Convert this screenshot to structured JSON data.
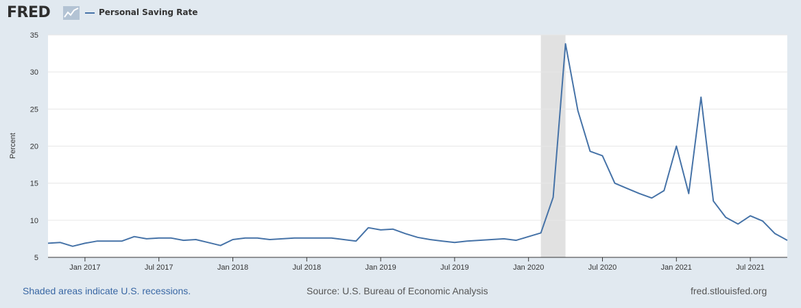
{
  "header": {
    "logo_text": "FRED",
    "logo_icon": "fred-chart-logo-icon",
    "legend_label": "Personal Saving Rate",
    "series_color": "#4572a7"
  },
  "footer": {
    "recession_note": "Shaded areas indicate U.S. recessions.",
    "source": "Source: U.S. Bureau of Economic Analysis",
    "site": "fred.stlouisfed.org"
  },
  "chart_data": {
    "type": "line",
    "title": "",
    "xlabel": "",
    "ylabel": "Percent",
    "ylim": [
      5,
      35
    ],
    "yticks": [
      5,
      10,
      15,
      20,
      25,
      30,
      35
    ],
    "xticks": [
      {
        "label": "Jan 2017",
        "date": "2017-01"
      },
      {
        "label": "Jul 2017",
        "date": "2017-07"
      },
      {
        "label": "Jan 2018",
        "date": "2018-01"
      },
      {
        "label": "Jul 2018",
        "date": "2018-07"
      },
      {
        "label": "Jan 2019",
        "date": "2019-01"
      },
      {
        "label": "Jul 2019",
        "date": "2019-07"
      },
      {
        "label": "Jan 2020",
        "date": "2020-01"
      },
      {
        "label": "Jul 2020",
        "date": "2020-07"
      },
      {
        "label": "Jan 2021",
        "date": "2021-01"
      },
      {
        "label": "Jul 2021",
        "date": "2021-07"
      }
    ],
    "grid": true,
    "recession_shading": {
      "start": "2020-02",
      "end": "2020-04"
    },
    "series": [
      {
        "name": "Personal Saving Rate",
        "color": "#4572a7",
        "x": [
          "2016-10",
          "2016-11",
          "2016-12",
          "2017-01",
          "2017-02",
          "2017-03",
          "2017-04",
          "2017-05",
          "2017-06",
          "2017-07",
          "2017-08",
          "2017-09",
          "2017-10",
          "2017-11",
          "2017-12",
          "2018-01",
          "2018-02",
          "2018-03",
          "2018-04",
          "2018-05",
          "2018-06",
          "2018-07",
          "2018-08",
          "2018-09",
          "2018-10",
          "2018-11",
          "2018-12",
          "2019-01",
          "2019-02",
          "2019-03",
          "2019-04",
          "2019-05",
          "2019-06",
          "2019-07",
          "2019-08",
          "2019-09",
          "2019-10",
          "2019-11",
          "2019-12",
          "2020-01",
          "2020-02",
          "2020-03",
          "2020-04",
          "2020-05",
          "2020-06",
          "2020-07",
          "2020-08",
          "2020-09",
          "2020-10",
          "2020-11",
          "2020-12",
          "2021-01",
          "2021-02",
          "2021-03",
          "2021-04",
          "2021-05",
          "2021-06",
          "2021-07",
          "2021-08",
          "2021-09",
          "2021-10"
        ],
        "values": [
          6.9,
          7.0,
          6.5,
          6.9,
          7.2,
          7.2,
          7.2,
          7.8,
          7.5,
          7.6,
          7.6,
          7.3,
          7.4,
          7.0,
          6.6,
          7.4,
          7.6,
          7.6,
          7.4,
          7.5,
          7.6,
          7.6,
          7.6,
          7.6,
          7.4,
          7.2,
          9.0,
          8.7,
          8.8,
          8.2,
          7.7,
          7.4,
          7.2,
          7.0,
          7.2,
          7.3,
          7.4,
          7.5,
          7.3,
          7.8,
          8.3,
          13.1,
          33.8,
          24.8,
          19.3,
          18.7,
          15.0,
          14.3,
          13.6,
          13.0,
          14.0,
          20.0,
          13.6,
          26.6,
          12.6,
          10.4,
          9.5,
          10.6,
          9.9,
          8.2,
          7.3
        ]
      }
    ]
  }
}
